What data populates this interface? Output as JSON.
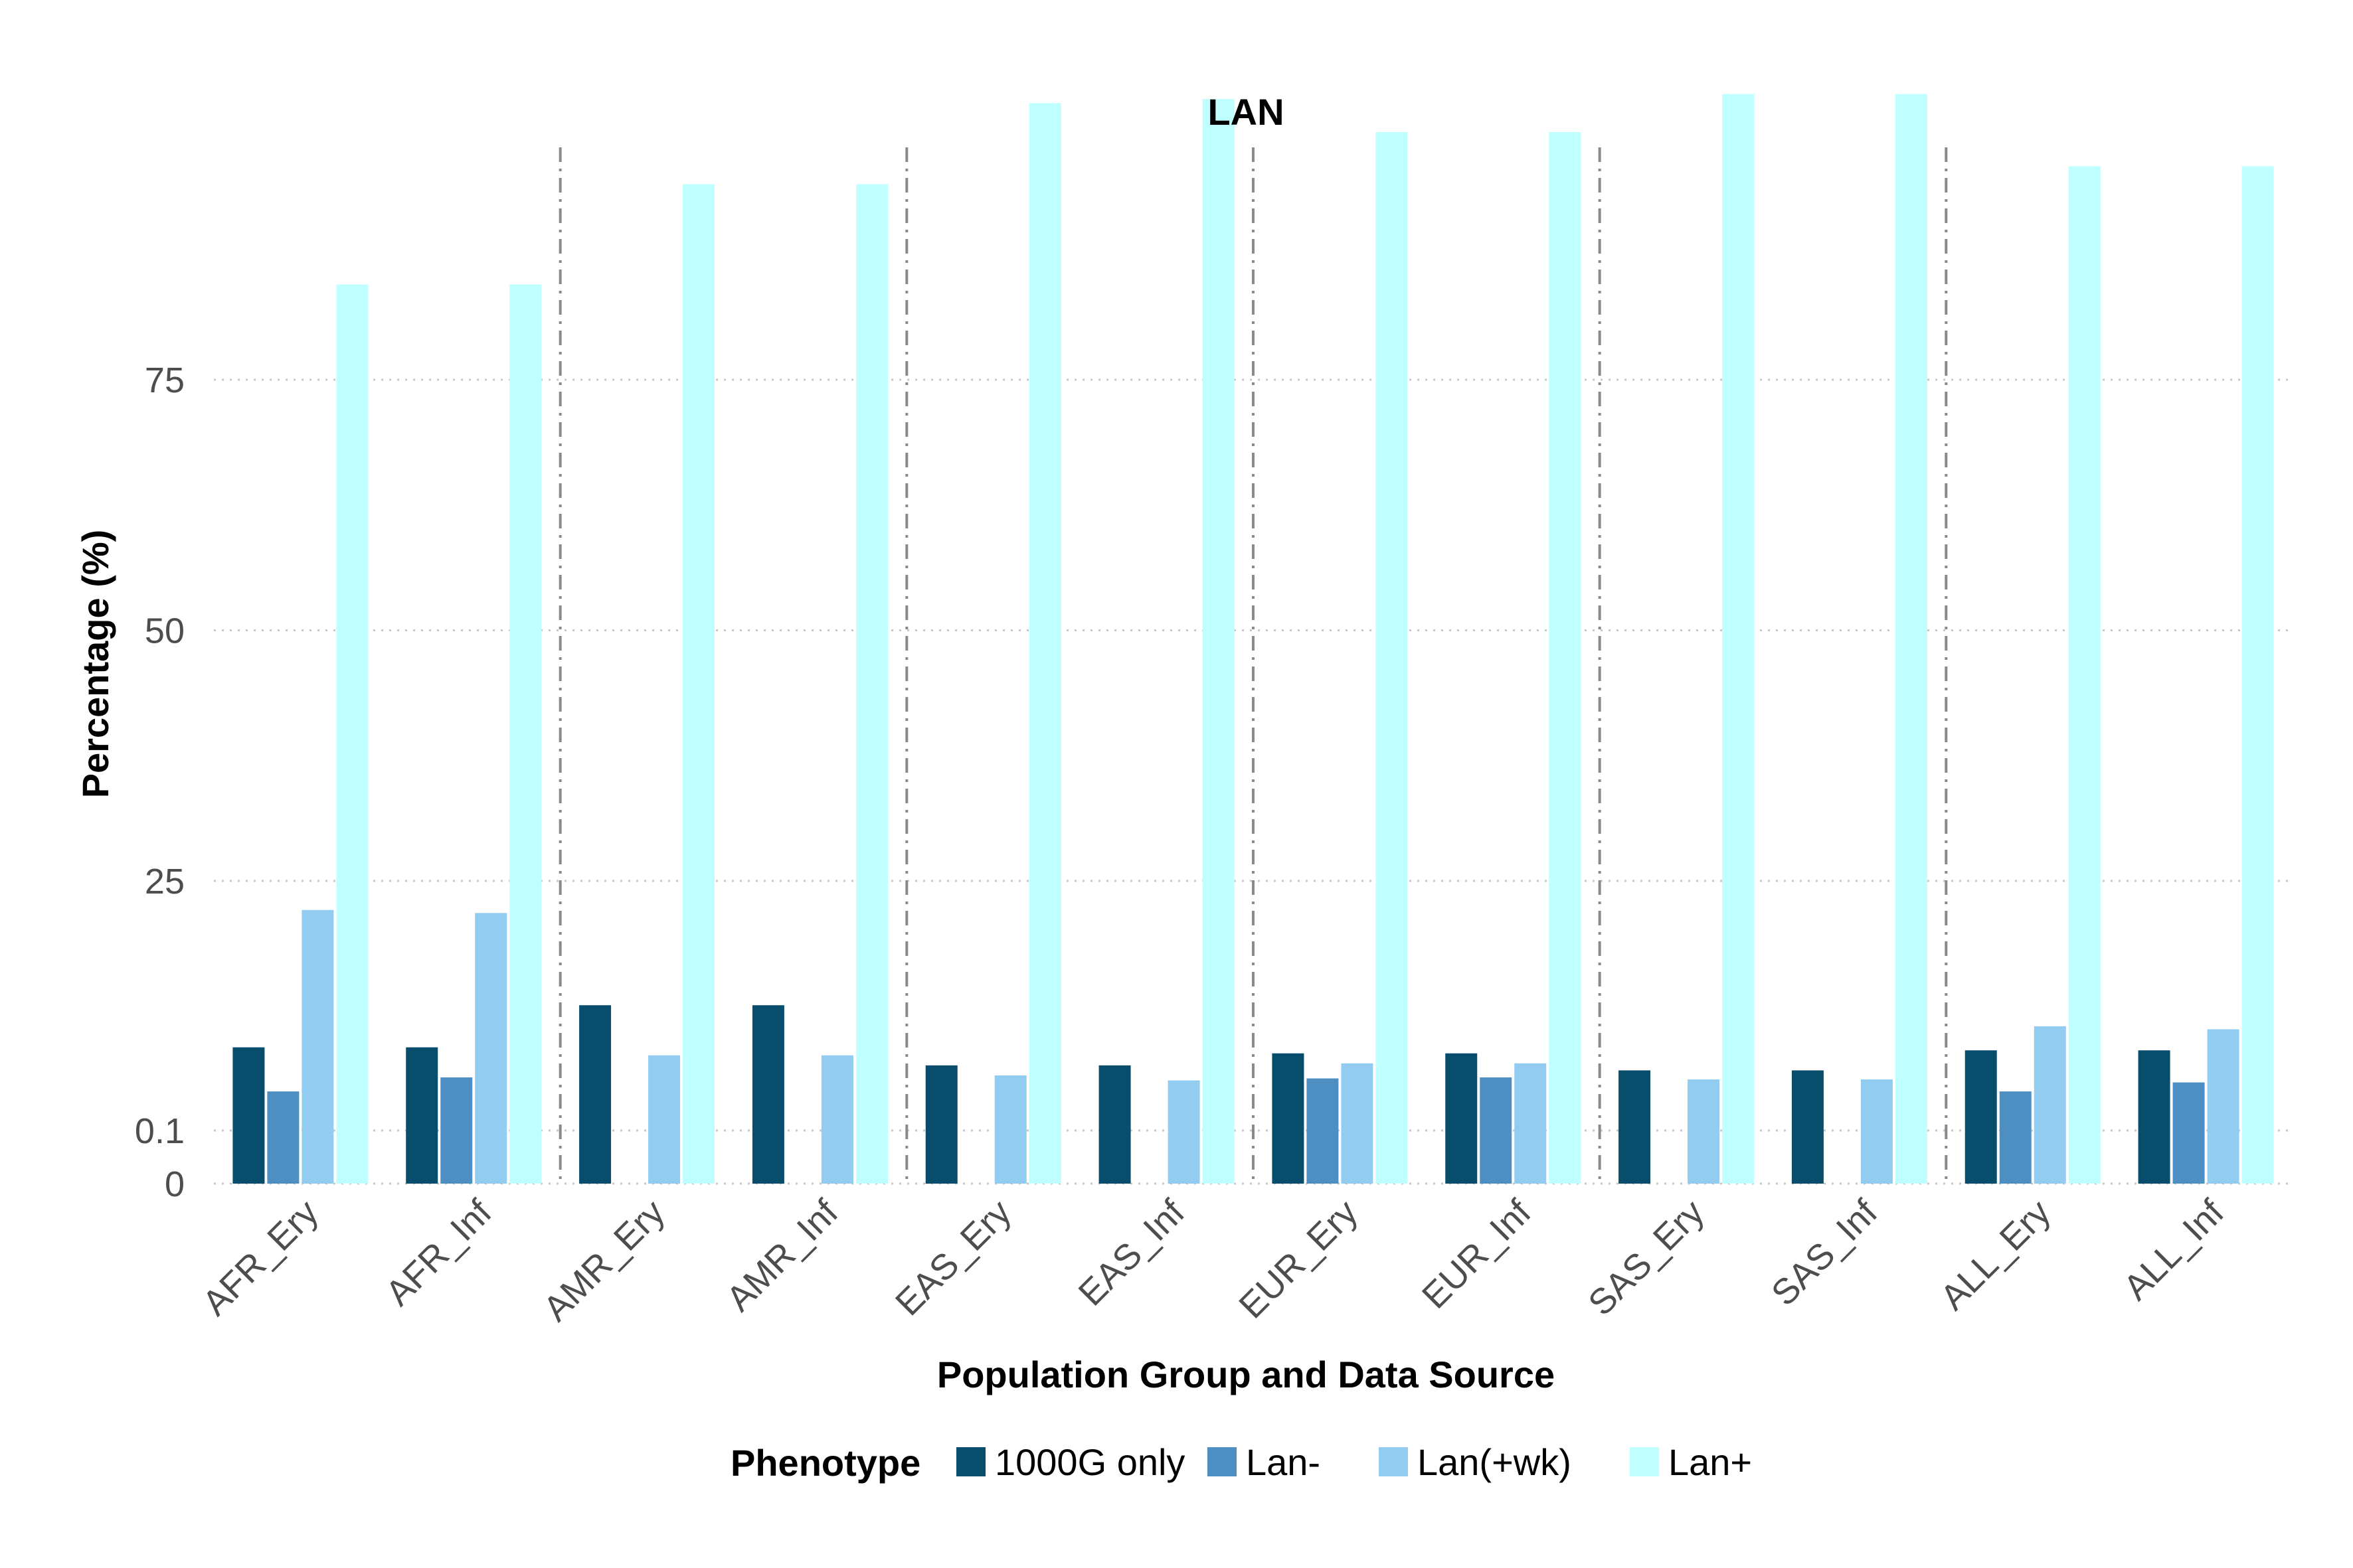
{
  "chart_data": {
    "type": "bar",
    "title": "LAN",
    "xlabel": "Population Group and Data Source",
    "ylabel": "Percentage (%)",
    "ylim": [
      0,
      100
    ],
    "yticks": [
      0,
      0.1,
      25,
      50,
      75
    ],
    "y_axis_note": "axis is squished between 0 and 0.1",
    "grid": "horizontal dotted",
    "group_separators": "dash-dot vertical lines between population groups",
    "legend": {
      "title": "Phenotype",
      "position": "bottom"
    },
    "categories": [
      "AFR_Ery",
      "AFR_Inf",
      "AMR_Ery",
      "AMR_Inf",
      "EAS_Ery",
      "EAS_Inf",
      "EUR_Ery",
      "EUR_Inf",
      "SAS_Ery",
      "SAS_Inf",
      "ALL_Ery",
      "ALL_Inf"
    ],
    "series": [
      {
        "name": "1000G only",
        "color": "#084e6c",
        "values": [
          8.4,
          8.4,
          12.6,
          12.6,
          6.6,
          6.6,
          7.8,
          7.8,
          6.1,
          6.1,
          8.1,
          8.1
        ]
      },
      {
        "name": "Lan-",
        "color": "#4d8fc3",
        "values": [
          4.0,
          5.4,
          0,
          0,
          0,
          0,
          5.3,
          5.4,
          0,
          0,
          4.0,
          4.9
        ]
      },
      {
        "name": "Lan(+wk)",
        "color": "#93ccf1",
        "values": [
          22.1,
          21.8,
          7.6,
          7.6,
          5.6,
          5.1,
          6.8,
          6.8,
          5.2,
          5.2,
          10.5,
          10.2
        ]
      },
      {
        "name": "Lan+",
        "color": "#bfffff",
        "values": [
          84.5,
          84.5,
          94.5,
          94.5,
          102.6,
          103.0,
          99.7,
          99.7,
          103.5,
          103.5,
          96.3,
          96.3
        ]
      }
    ]
  }
}
